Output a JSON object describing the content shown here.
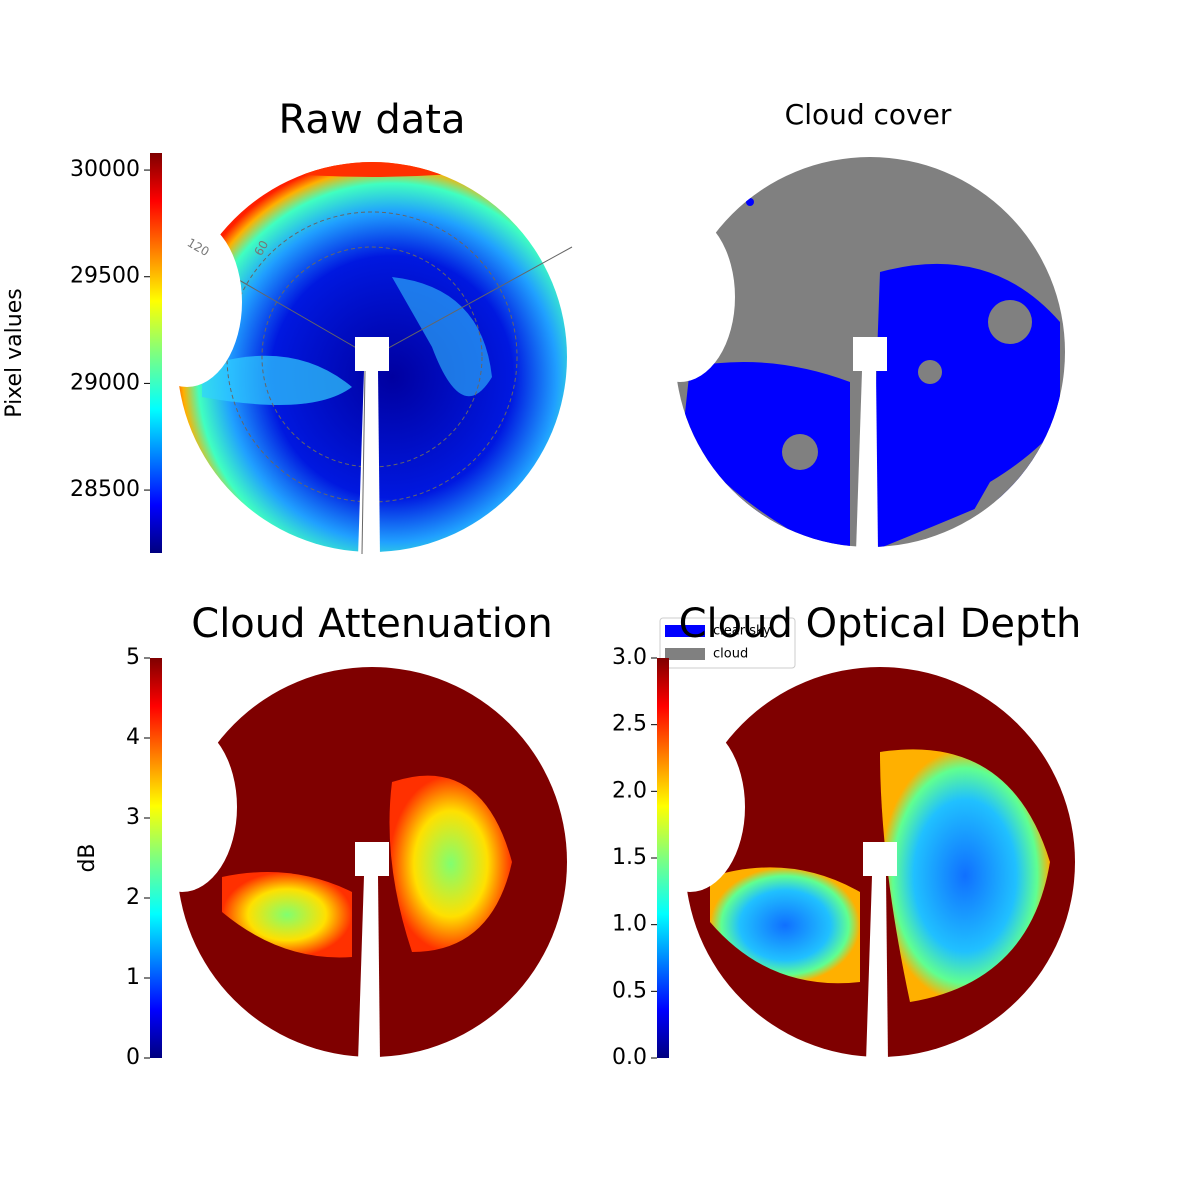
{
  "chart_data": [
    {
      "type": "image",
      "title": "Raw data",
      "grid_labels": [
        120,
        60
      ],
      "colorbar": {
        "label": "Pixel values",
        "colormap": "jet",
        "ylim": [
          28205,
          30080
        ],
        "yticks": [
          28500,
          29000,
          29500,
          30000
        ]
      }
    },
    {
      "type": "image",
      "title": "Cloud cover",
      "legend": "lower left",
      "series": [
        {
          "name": "clear sky",
          "color": "#0000ff"
        },
        {
          "name": "cloud",
          "color": "#808080"
        }
      ]
    },
    {
      "type": "image",
      "title": "Cloud Attenuation",
      "colorbar": {
        "label": "dB",
        "colormap": "jet",
        "ylim": [
          0,
          5
        ],
        "yticks": [
          0,
          1,
          2,
          3,
          4,
          5
        ]
      }
    },
    {
      "type": "image",
      "title": "Cloud Optical Depth",
      "colorbar": {
        "colormap": "jet",
        "ylim": [
          0,
          3
        ],
        "yticks": [
          {
            "value": 0,
            "label": "0.0"
          },
          0.5,
          {
            "value": 1,
            "label": "1.0"
          },
          1.5,
          {
            "value": 2,
            "label": "2.0"
          },
          2.5,
          {
            "value": 3,
            "label": "3.0"
          }
        ]
      }
    }
  ]
}
